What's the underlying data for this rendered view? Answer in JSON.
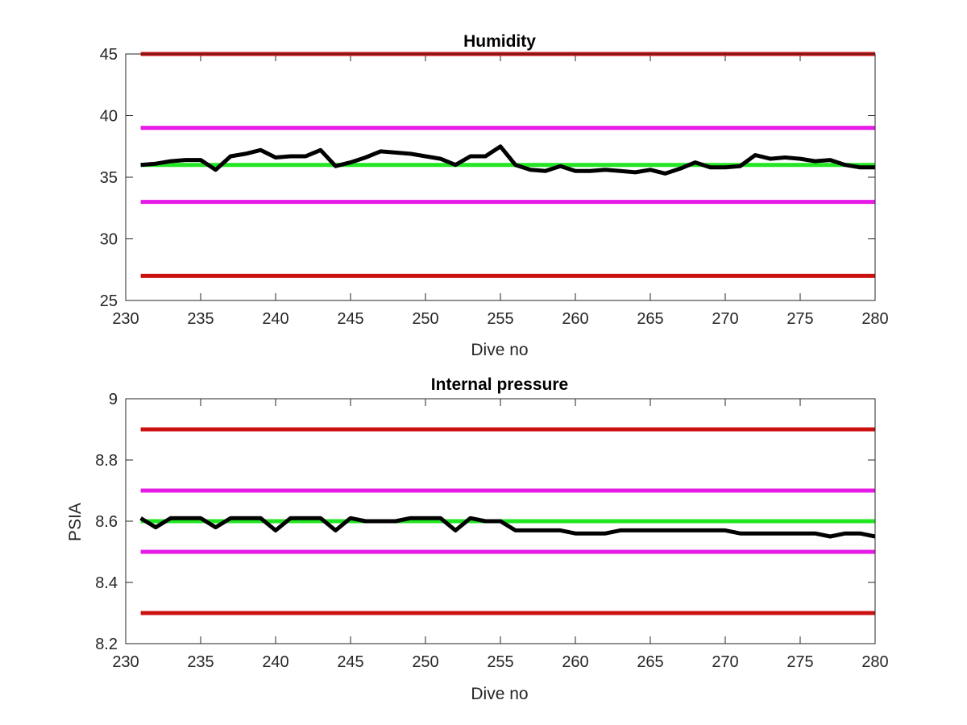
{
  "chart_data": [
    {
      "type": "line",
      "title": "Humidity",
      "xlabel": "Dive no",
      "ylabel": "",
      "xlim": [
        230,
        280
      ],
      "ylim": [
        25,
        45
      ],
      "xticks": [
        "230",
        "235",
        "240",
        "245",
        "250",
        "255",
        "260",
        "265",
        "270",
        "275",
        "280"
      ],
      "yticks": [
        "25",
        "30",
        "35",
        "40",
        "45"
      ],
      "grid": false,
      "series": [
        {
          "color": "#000000",
          "x": [
            231,
            232,
            233,
            234,
            235,
            236,
            237,
            238,
            239,
            240,
            241,
            242,
            243,
            244,
            245,
            246,
            247,
            248,
            249,
            250,
            251,
            252,
            253,
            254,
            255,
            256,
            257,
            258,
            259,
            260,
            261,
            262,
            263,
            264,
            265,
            266,
            267,
            268,
            269,
            270,
            271,
            272,
            273,
            274,
            275,
            276,
            277,
            278,
            279,
            280
          ],
          "y": [
            36.0,
            36.1,
            36.3,
            36.4,
            36.4,
            35.6,
            36.7,
            36.9,
            37.2,
            36.6,
            36.7,
            36.7,
            37.2,
            35.9,
            36.2,
            36.6,
            37.1,
            37.0,
            36.9,
            36.7,
            36.5,
            36.0,
            36.7,
            36.7,
            37.5,
            36.0,
            35.6,
            35.5,
            35.9,
            35.5,
            35.5,
            35.6,
            35.5,
            35.4,
            35.6,
            35.3,
            35.7,
            36.2,
            35.8,
            35.8,
            35.9,
            36.8,
            36.5,
            36.6,
            36.5,
            36.3,
            36.4,
            36.0,
            35.8,
            35.8
          ]
        },
        {
          "color": "#22e622",
          "x": [
            231,
            280
          ],
          "y": [
            36,
            36
          ]
        },
        {
          "color": "#e619e6",
          "x": [
            231,
            280
          ],
          "y": [
            39,
            39
          ]
        },
        {
          "color": "#e619e6",
          "x": [
            231,
            280
          ],
          "y": [
            33,
            33
          ]
        },
        {
          "color": "#cc1111",
          "x": [
            231,
            280
          ],
          "y": [
            45,
            45
          ]
        },
        {
          "color": "#cc1111",
          "x": [
            231,
            280
          ],
          "y": [
            27,
            27
          ]
        }
      ]
    },
    {
      "type": "line",
      "title": "Internal pressure",
      "xlabel": "Dive no",
      "ylabel": "PSIA",
      "xlim": [
        230,
        280
      ],
      "ylim": [
        8.2,
        9
      ],
      "xticks": [
        "230",
        "235",
        "240",
        "245",
        "250",
        "255",
        "260",
        "265",
        "270",
        "275",
        "280"
      ],
      "yticks": [
        "8.2",
        "8.4",
        "8.6",
        "8.8",
        "9"
      ],
      "grid": false,
      "series": [
        {
          "color": "#000000",
          "x": [
            231,
            232,
            233,
            234,
            235,
            236,
            237,
            238,
            239,
            240,
            241,
            242,
            243,
            244,
            245,
            246,
            247,
            248,
            249,
            250,
            251,
            252,
            253,
            254,
            255,
            256,
            257,
            258,
            259,
            260,
            261,
            262,
            263,
            264,
            265,
            266,
            267,
            268,
            269,
            270,
            271,
            272,
            273,
            274,
            275,
            276,
            277,
            278,
            279,
            280
          ],
          "y": [
            8.61,
            8.58,
            8.61,
            8.61,
            8.61,
            8.58,
            8.61,
            8.61,
            8.61,
            8.57,
            8.61,
            8.61,
            8.61,
            8.57,
            8.61,
            8.6,
            8.6,
            8.6,
            8.61,
            8.61,
            8.61,
            8.57,
            8.61,
            8.6,
            8.6,
            8.57,
            8.57,
            8.57,
            8.57,
            8.56,
            8.56,
            8.56,
            8.57,
            8.57,
            8.57,
            8.57,
            8.57,
            8.57,
            8.57,
            8.57,
            8.56,
            8.56,
            8.56,
            8.56,
            8.56,
            8.56,
            8.55,
            8.56,
            8.56,
            8.55
          ]
        },
        {
          "color": "#22e622",
          "x": [
            231,
            280
          ],
          "y": [
            8.6,
            8.6
          ]
        },
        {
          "color": "#e619e6",
          "x": [
            231,
            280
          ],
          "y": [
            8.7,
            8.7
          ]
        },
        {
          "color": "#e619e6",
          "x": [
            231,
            280
          ],
          "y": [
            8.5,
            8.5
          ]
        },
        {
          "color": "#cc1111",
          "x": [
            231,
            280
          ],
          "y": [
            8.9,
            8.9
          ]
        },
        {
          "color": "#cc1111",
          "x": [
            231,
            280
          ],
          "y": [
            8.3,
            8.3
          ]
        }
      ]
    }
  ]
}
